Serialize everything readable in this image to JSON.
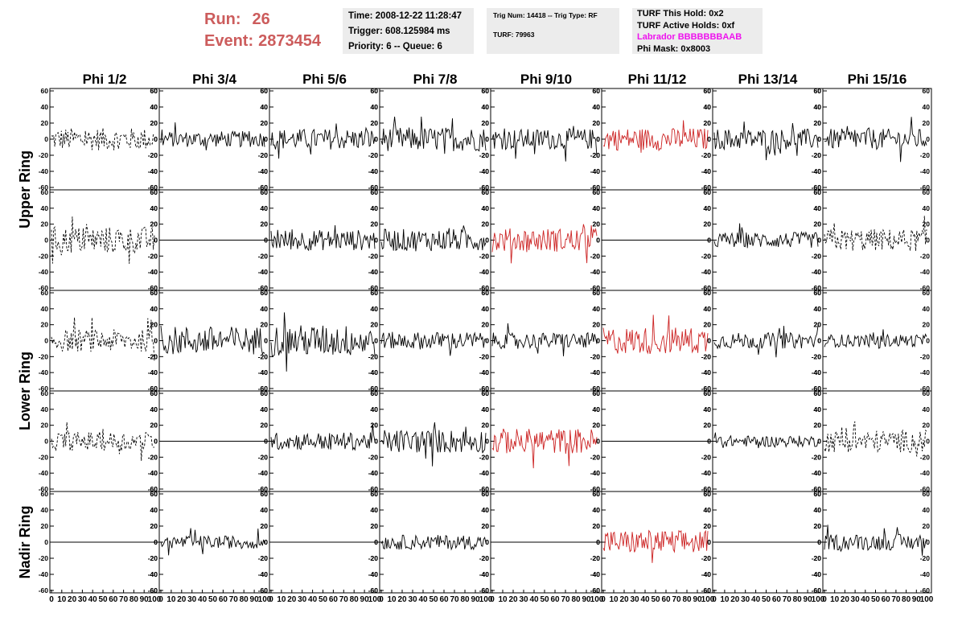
{
  "header": {
    "run_label": "Run:",
    "run_value": "26",
    "event_label": "Event:",
    "event_value": "2873454",
    "time": "Time: 2008-12-22 11:28:47",
    "trigger": "Trigger: 608.125984 ms",
    "priority": "Priority: 6 -- Queue: 6",
    "trig_num": "Trig Num: 14418 -- Trig Type: RF",
    "turf": "TURF: 79963",
    "turf_this_hold": "TURF This Hold: 0x2",
    "turf_active_holds": "TURF Active Holds: 0xf",
    "labrador": "Labrador BBBBBBBAAB",
    "phi_mask": "Phi Mask: 0x8003"
  },
  "colors": {
    "header_red": "#cc5c5c",
    "labrador_pink": "#ee11ee",
    "trace_black": "#000000",
    "trace_red": "#cc2222",
    "box_bg": "#ececec"
  },
  "chart_data": {
    "type": "line",
    "columns": [
      "Phi 1/2",
      "Phi 3/4",
      "Phi 5/6",
      "Phi 7/8",
      "Phi 9/10",
      "Phi 11/12",
      "Phi 13/14",
      "Phi 15/16"
    ],
    "row_labels": [
      "Upper Ring",
      "Lower Ring",
      "Nadir Ring"
    ],
    "xlim": [
      0,
      100
    ],
    "ylim": [
      -60,
      60
    ],
    "y_ticks": [
      -60,
      -40,
      -20,
      0,
      20,
      40,
      60
    ],
    "x_ticks_labels": [
      "0",
      "10",
      "20",
      "30",
      "40",
      "50",
      "60",
      "70",
      "80",
      "90",
      "100"
    ],
    "grid": false,
    "panels": [
      [
        {
          "style": "dashed",
          "color": "black",
          "amp": 14,
          "n": 95
        },
        {
          "style": "solid",
          "color": "black",
          "amp": 10,
          "n": 95
        },
        {
          "style": "solid",
          "color": "black",
          "amp": 13,
          "n": 95
        },
        {
          "style": "solid",
          "color": "black",
          "amp": 15,
          "n": 95
        },
        {
          "style": "solid",
          "color": "black",
          "amp": 13,
          "n": 95
        },
        {
          "style": "solid",
          "color": "red",
          "amp": 14,
          "n": 95
        },
        {
          "style": "solid",
          "color": "black",
          "amp": 13,
          "n": 95
        },
        {
          "style": "solid",
          "color": "black",
          "amp": 13,
          "n": 95
        }
      ],
      [
        {
          "style": "dashed",
          "color": "black",
          "amp": 17,
          "n": 95
        },
        {
          "style": "flat",
          "color": "black",
          "amp": 0,
          "n": 2
        },
        {
          "style": "solid",
          "color": "black",
          "amp": 13,
          "n": 95
        },
        {
          "style": "solid",
          "color": "black",
          "amp": 14,
          "n": 95
        },
        {
          "style": "solid",
          "color": "red",
          "amp": 15,
          "n": 95
        },
        {
          "style": "flat",
          "color": "black",
          "amp": 0,
          "n": 2
        },
        {
          "style": "solid",
          "color": "black",
          "amp": 10,
          "n": 95
        },
        {
          "style": "dashed",
          "color": "black",
          "amp": 14,
          "n": 95
        }
      ],
      [
        {
          "style": "dashed",
          "color": "black",
          "amp": 14,
          "n": 95
        },
        {
          "style": "solid",
          "color": "black",
          "amp": 18,
          "n": 95
        },
        {
          "style": "solid",
          "color": "black",
          "amp": 20,
          "n": 95
        },
        {
          "style": "solid",
          "color": "black",
          "amp": 11,
          "n": 95
        },
        {
          "style": "solid",
          "color": "black",
          "amp": 10,
          "n": 95
        },
        {
          "style": "solid",
          "color": "red",
          "amp": 17,
          "n": 95
        },
        {
          "style": "solid",
          "color": "black",
          "amp": 10,
          "n": 95
        },
        {
          "style": "solid",
          "color": "black",
          "amp": 8,
          "n": 95
        }
      ],
      [
        {
          "style": "dashed",
          "color": "black",
          "amp": 12,
          "n": 95
        },
        {
          "style": "flat",
          "color": "black",
          "amp": 0,
          "n": 2
        },
        {
          "style": "solid",
          "color": "black",
          "amp": 11,
          "n": 95
        },
        {
          "style": "solid",
          "color": "black",
          "amp": 15,
          "n": 95
        },
        {
          "style": "solid",
          "color": "red",
          "amp": 16,
          "n": 95
        },
        {
          "style": "flat",
          "color": "black",
          "amp": 0,
          "n": 2
        },
        {
          "style": "solid",
          "color": "black",
          "amp": 7,
          "n": 95
        },
        {
          "style": "dashed",
          "color": "black",
          "amp": 14,
          "n": 95
        }
      ],
      [
        {
          "style": "flat",
          "color": "black",
          "amp": 0,
          "n": 2
        },
        {
          "style": "solid",
          "color": "black",
          "amp": 8,
          "n": 95
        },
        {
          "style": "flat",
          "color": "black",
          "amp": 0,
          "n": 2
        },
        {
          "style": "solid",
          "color": "black",
          "amp": 9,
          "n": 95
        },
        {
          "style": "flat",
          "color": "black",
          "amp": 0,
          "n": 2
        },
        {
          "style": "solid",
          "color": "red",
          "amp": 15,
          "n": 95
        },
        {
          "style": "flat",
          "color": "black",
          "amp": 0,
          "n": 2
        },
        {
          "style": "solid",
          "color": "black",
          "amp": 10,
          "n": 95
        }
      ]
    ]
  }
}
